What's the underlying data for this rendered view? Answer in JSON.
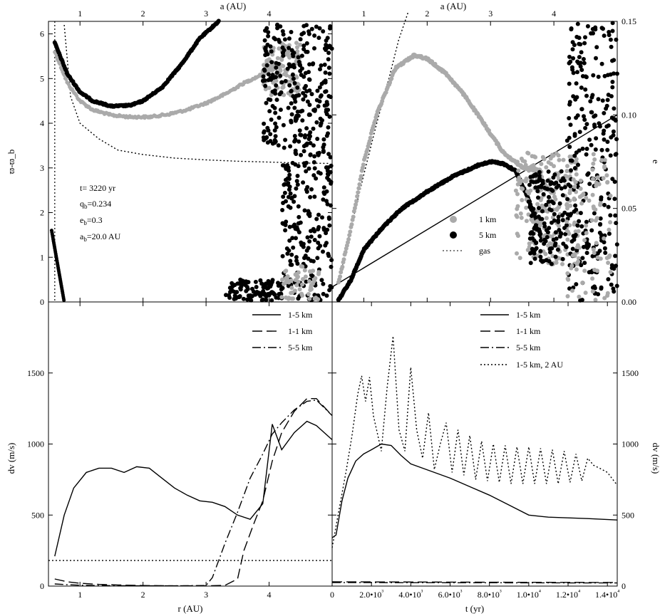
{
  "chart_data": [
    {
      "panel": "top-left",
      "type": "scatter",
      "xlabel_top": "a (AU)",
      "ylabel": "ϖ-ϖ_b",
      "xlim": [
        0.5,
        5.0
      ],
      "ylim": [
        0,
        6.28
      ],
      "xticks": [
        1,
        2,
        3,
        4
      ],
      "yticks": [
        0,
        1,
        2,
        3,
        4,
        5,
        6
      ],
      "annotations": [
        "t= 3220 yr",
        "q_b=0.234",
        "e_b=0.3",
        "a_b=20.0 AU"
      ],
      "series": [
        {
          "color": "#aaaaaa",
          "style": "points",
          "x": [
            0.6,
            0.8,
            1.0,
            1.2,
            1.5,
            1.8,
            2.1,
            2.4,
            2.7,
            3.0,
            3.3,
            3.6,
            3.9,
            4.2
          ],
          "y": [
            5.6,
            4.9,
            4.5,
            4.3,
            4.18,
            4.14,
            4.14,
            4.2,
            4.3,
            4.45,
            4.65,
            4.9,
            5.1,
            5.3
          ]
        },
        {
          "color": "#000000",
          "style": "points",
          "x": [
            0.6,
            0.8,
            1.0,
            1.2,
            1.5,
            1.8,
            2.0,
            2.3,
            2.6,
            2.9,
            3.2
          ],
          "y": [
            5.8,
            5.1,
            4.7,
            4.5,
            4.38,
            4.4,
            4.5,
            4.8,
            5.3,
            5.9,
            6.28
          ]
        },
        {
          "color": "#000000",
          "style": "dotted",
          "x": [
            0.75,
            0.85,
            1.0,
            1.3,
            1.6,
            2.0,
            2.5,
            3.0,
            3.5,
            4.0,
            4.5,
            4.95
          ],
          "y": [
            6.2,
            4.6,
            4.0,
            3.65,
            3.4,
            3.3,
            3.22,
            3.18,
            3.15,
            3.13,
            3.11,
            3.1
          ]
        }
      ]
    },
    {
      "panel": "top-right",
      "type": "scatter",
      "xlabel_top": "a (AU)",
      "ylabel_right": "e",
      "xlim": [
        0.5,
        5.0
      ],
      "ylim": [
        0,
        0.15
      ],
      "xticks": [
        1,
        2,
        3,
        4
      ],
      "yticks": [
        "0.00",
        "0.05",
        "0.10",
        "0.15"
      ],
      "legend": {
        "placement": "center-right",
        "entries": [
          "1 km",
          "5 km",
          "gas"
        ]
      },
      "series": [
        {
          "name": "1 km",
          "color": "#aaaaaa",
          "style": "points",
          "x": [
            0.6,
            0.8,
            1.0,
            1.2,
            1.5,
            1.8,
            2.0,
            2.3,
            2.6,
            2.9,
            3.2,
            3.5,
            3.8
          ],
          "y": [
            0.01,
            0.04,
            0.075,
            0.1,
            0.125,
            0.132,
            0.13,
            0.122,
            0.11,
            0.095,
            0.08,
            0.072,
            0.07
          ]
        },
        {
          "name": "5 km",
          "color": "#000000",
          "style": "points",
          "x": [
            0.6,
            0.8,
            1.0,
            1.3,
            1.6,
            2.0,
            2.4,
            2.8,
            3.0,
            3.2,
            3.4,
            3.6,
            3.8
          ],
          "y": [
            0.001,
            0.012,
            0.028,
            0.04,
            0.05,
            0.059,
            0.067,
            0.073,
            0.075,
            0.074,
            0.07,
            0.055,
            0.035
          ]
        },
        {
          "name": "gas",
          "color": "#000000",
          "style": "dotted",
          "x": [
            0.6,
            0.8,
            1.0,
            1.2,
            1.4,
            1.55,
            1.7
          ],
          "y": [
            0.01,
            0.04,
            0.068,
            0.095,
            0.12,
            0.14,
            0.155
          ]
        },
        {
          "color": "#000000",
          "style": "solid",
          "x": [
            0.5,
            5.0
          ],
          "y": [
            0.008,
            0.1
          ]
        }
      ]
    },
    {
      "panel": "bottom-left",
      "type": "line",
      "xlabel": "r (AU)",
      "ylabel": "dv (m/s)",
      "xlim": [
        0.5,
        5.0
      ],
      "ylim": [
        0,
        2000
      ],
      "xticks": [
        1,
        2,
        3,
        4
      ],
      "yticks": [
        0,
        500,
        1000,
        1500
      ],
      "legend": {
        "placement": "top-right",
        "entries": [
          "1-5 km",
          "1-1 km",
          "5-5 km"
        ]
      },
      "series": [
        {
          "name": "1-5 km",
          "style": "solid",
          "x": [
            0.6,
            0.75,
            0.9,
            1.1,
            1.3,
            1.5,
            1.7,
            1.9,
            2.1,
            2.3,
            2.5,
            2.7,
            2.9,
            3.1,
            3.3,
            3.5,
            3.7,
            3.9,
            4.05,
            4.2,
            4.4,
            4.6,
            4.75,
            5.0
          ],
          "y": [
            210,
            500,
            690,
            800,
            830,
            830,
            800,
            840,
            830,
            760,
            690,
            640,
            600,
            590,
            560,
            500,
            470,
            580,
            1140,
            960,
            1080,
            1160,
            1130,
            1030
          ]
        },
        {
          "name": "1-1 km",
          "style": "dashed",
          "x": [
            0.6,
            0.8,
            1.0,
            1.3,
            1.6,
            2.0,
            2.5,
            3.0,
            3.3,
            3.5,
            3.6,
            3.75,
            3.9,
            4.05,
            4.2,
            4.4,
            4.6,
            4.75,
            5.0
          ],
          "y": [
            50,
            30,
            20,
            12,
            8,
            4,
            2,
            2,
            5,
            50,
            250,
            430,
            600,
            880,
            1080,
            1230,
            1320,
            1320,
            1200
          ]
        },
        {
          "name": "5-5 km",
          "style": "dashdot",
          "x": [
            0.6,
            0.8,
            1.0,
            1.3,
            1.6,
            2.0,
            2.5,
            3.0,
            3.1,
            3.3,
            3.5,
            3.7,
            3.9,
            4.05,
            4.2,
            4.4,
            4.6,
            4.75,
            5.0
          ],
          "y": [
            15,
            10,
            6,
            4,
            3,
            2,
            2,
            4,
            60,
            300,
            520,
            760,
            930,
            1070,
            1150,
            1240,
            1300,
            1310,
            1200
          ]
        },
        {
          "style": "dotted",
          "x": [
            0.5,
            5.0
          ],
          "y": [
            180,
            180
          ]
        }
      ]
    },
    {
      "panel": "bottom-right",
      "type": "line",
      "xlabel": "t (yr)",
      "ylabel_right": "dv (m/s)",
      "xlim": [
        0,
        14500
      ],
      "ylim": [
        0,
        2000
      ],
      "xticks": [
        "0",
        "2.0•10³",
        "4.0•10³",
        "6.0•10³",
        "8.0•10³",
        "1.0•10⁴",
        "1.2•10⁴",
        "1.4•10⁴"
      ],
      "yticks": [
        0,
        500,
        1000,
        1500
      ],
      "legend": {
        "placement": "top-right",
        "entries": [
          "1-5 km",
          "1-1 km",
          "5-5 km",
          "1-5 km, 2 AU"
        ]
      },
      "series": [
        {
          "name": "1-5 km",
          "style": "solid",
          "x": [
            0,
            200,
            500,
            800,
            1200,
            1600,
            2000,
            2500,
            3000,
            3500,
            4000,
            5000,
            6000,
            7000,
            8000,
            9000,
            10000,
            11000,
            12000,
            13000,
            14500
          ],
          "y": [
            340,
            360,
            600,
            760,
            880,
            930,
            960,
            1000,
            990,
            920,
            860,
            810,
            760,
            700,
            640,
            570,
            500,
            485,
            480,
            475,
            465
          ]
        },
        {
          "name": "1-1 km",
          "style": "dashed",
          "x": [
            0,
            14500
          ],
          "y": [
            30,
            25
          ]
        },
        {
          "name": "5-5 km",
          "style": "dashdot",
          "x": [
            0,
            14500
          ],
          "y": [
            25,
            22
          ]
        },
        {
          "name": "1-5 km, 2 AU",
          "style": "dotted",
          "x": [
            0,
            300,
            700,
            1000,
            1300,
            1500,
            1700,
            1900,
            2100,
            2500,
            2800,
            3100,
            3400,
            3700,
            4000,
            4300,
            4600,
            4900,
            5200,
            5500,
            5800,
            6100,
            6400,
            6700,
            7000,
            7300,
            7600,
            7900,
            8200,
            8500,
            8800,
            9100,
            9400,
            9700,
            10000,
            10300,
            10600,
            10900,
            11200,
            11500,
            11800,
            12100,
            12400,
            12700,
            13000,
            13300,
            13600,
            14000,
            14500
          ],
          "y": [
            270,
            500,
            800,
            1050,
            1350,
            1480,
            1300,
            1470,
            1200,
            950,
            1400,
            1760,
            1100,
            950,
            1540,
            1100,
            900,
            1220,
            820,
            1000,
            1150,
            800,
            1100,
            780,
            1060,
            750,
            1020,
            740,
            1000,
            730,
            990,
            720,
            980,
            720,
            980,
            720,
            970,
            720,
            960,
            720,
            950,
            730,
            930,
            740,
            900,
            850,
            830,
            800,
            710
          ]
        }
      ]
    }
  ]
}
